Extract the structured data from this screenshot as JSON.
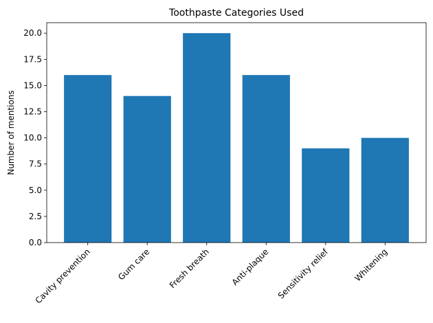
{
  "chart_data": {
    "type": "bar",
    "title": "Toothpaste Categories Used",
    "y_label": "Number of mentions",
    "categories": [
      "Cavity prevention",
      "Gum care",
      "Fresh breath",
      "Anti-plaque",
      "Sensitivity relief",
      "Whitening"
    ],
    "values": [
      16,
      14,
      20,
      16,
      9,
      10
    ],
    "color": "#1f77b4",
    "ylim": [
      0,
      21
    ],
    "yticks": [
      {
        "value": 0,
        "label": "0.0"
      },
      2.5,
      {
        "value": 5,
        "label": "5.0"
      },
      7.5,
      {
        "value": 10,
        "label": "10.0"
      },
      12.5,
      {
        "value": 15,
        "label": "15.0"
      },
      17.5,
      {
        "value": 20,
        "label": "20.0"
      }
    ],
    "grid": false
  }
}
